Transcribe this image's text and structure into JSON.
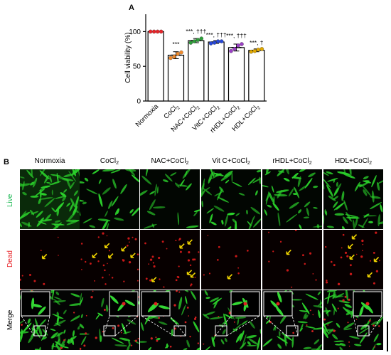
{
  "figure": {
    "panel_a_letter": "A",
    "panel_b_letter": "B"
  },
  "chart_data": {
    "type": "bar",
    "ylabel": "Cell viability (%)",
    "ylim": [
      0,
      125
    ],
    "yticks": [
      0,
      50,
      100
    ],
    "categories": [
      {
        "main": "Normoxia",
        "sub": "",
        "tail": ""
      },
      {
        "main": "CoCl",
        "sub": "2",
        "tail": ""
      },
      {
        "main": "NAC+CoCl",
        "sub": "2",
        "tail": ""
      },
      {
        "main": "VitC+CoCl",
        "sub": "2",
        "tail": ""
      },
      {
        "main": "rHDL+CoCl",
        "sub": "2",
        "tail": ""
      },
      {
        "main": "HDL+CoCl",
        "sub": "2",
        "tail": ""
      }
    ],
    "values": [
      100,
      66,
      87,
      85,
      77,
      73
    ],
    "errors": [
      0,
      5,
      3,
      2,
      5,
      2
    ],
    "points": [
      [
        100,
        100,
        100,
        100
      ],
      [
        62,
        64,
        68,
        70
      ],
      [
        84,
        86,
        88,
        90
      ],
      [
        83,
        84,
        86,
        86
      ],
      [
        72,
        75,
        80,
        82
      ],
      [
        71,
        72,
        74,
        75
      ]
    ],
    "point_colors": [
      "#e8252a",
      "#f08a2c",
      "#2e9e3a",
      "#2747d8",
      "#9a3fc4",
      "#e0a800"
    ],
    "annotations": [
      "",
      "***",
      "***, †††",
      "***, †††",
      "***, †††",
      "***, †"
    ]
  },
  "panel_b": {
    "columns": [
      {
        "main": "Normoxia",
        "sub": ""
      },
      {
        "main": "CoCl",
        "sub": "2"
      },
      {
        "main": "NAC+CoCl",
        "sub": "2"
      },
      {
        "main": "Vit C+CoCl",
        "sub": "2"
      },
      {
        "main": "rHDL+CoCl",
        "sub": "2"
      },
      {
        "main": "HDL+CoCl",
        "sub": "2"
      }
    ],
    "rows": [
      {
        "label": "Live",
        "color": "#1db954"
      },
      {
        "label": "Dead",
        "color": "#e8252a"
      },
      {
        "label": "Merge",
        "color": "#000000"
      }
    ],
    "live_density": [
      70,
      30,
      24,
      45,
      40,
      55
    ],
    "dead_density": [
      3,
      10,
      10,
      3,
      4,
      8
    ]
  }
}
